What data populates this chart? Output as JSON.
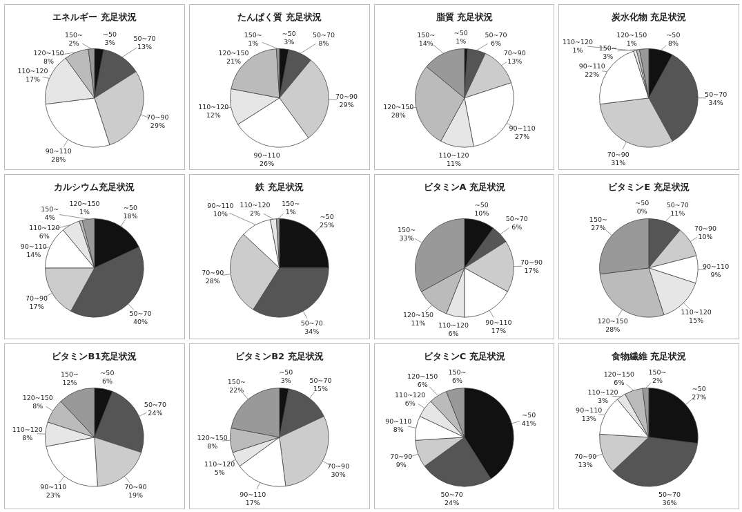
{
  "chart_data": [
    {
      "type": "pie",
      "title": "エネルギー 充足状況",
      "categories": [
        "~50",
        "50~70",
        "70~90",
        "90~110",
        "110~120",
        "120~150",
        "150~"
      ],
      "values": [
        3,
        13,
        29,
        28,
        17,
        8,
        2
      ],
      "colors": [
        "#111111",
        "#555555",
        "#cccccc",
        "#ffffff",
        "#e6e6e6",
        "#bbbbbb",
        "#999999"
      ],
      "value_labels": [
        "3%",
        "13%",
        "29%",
        "28%",
        "17%",
        "8%",
        "2%"
      ]
    },
    {
      "type": "pie",
      "title": "たんぱく質 充足状況",
      "categories": [
        "~50",
        "50~70",
        "70~90",
        "90~110",
        "110~120",
        "120~150",
        "150~"
      ],
      "values": [
        3,
        8,
        29,
        26,
        12,
        21,
        1
      ],
      "colors": [
        "#111111",
        "#555555",
        "#cccccc",
        "#ffffff",
        "#e6e6e6",
        "#bbbbbb",
        "#999999"
      ],
      "value_labels": [
        "3%",
        "8%",
        "29%",
        "26%",
        "12%",
        "21%",
        "1%"
      ]
    },
    {
      "type": "pie",
      "title": "脂質 充足状況",
      "categories": [
        "~50",
        "50~70",
        "70~90",
        "90~110",
        "110~120",
        "120~150",
        "150~"
      ],
      "values": [
        1,
        6,
        13,
        27,
        11,
        28,
        14
      ],
      "colors": [
        "#111111",
        "#555555",
        "#cccccc",
        "#ffffff",
        "#e6e6e6",
        "#bbbbbb",
        "#999999"
      ],
      "value_labels": [
        "1%",
        "6%",
        "13%",
        "27%",
        "11%",
        "28%",
        "14%"
      ]
    },
    {
      "type": "pie",
      "title": "炭水化物 充足状況",
      "categories": [
        "~50",
        "50~70",
        "70~90",
        "90~110",
        "110~120",
        "120~150",
        "150~"
      ],
      "values": [
        8,
        34,
        31,
        22,
        1,
        1,
        3
      ],
      "colors": [
        "#111111",
        "#555555",
        "#cccccc",
        "#ffffff",
        "#e6e6e6",
        "#bbbbbb",
        "#999999"
      ],
      "value_labels": [
        "8%",
        "34%",
        "31%",
        "22%",
        "1%",
        "1%",
        "3%"
      ]
    },
    {
      "type": "pie",
      "title": "カルシウム充足状況",
      "categories": [
        "~50",
        "50~70",
        "70~90",
        "90~110",
        "110~120",
        "120~150",
        "150~"
      ],
      "values": [
        18,
        40,
        17,
        14,
        6,
        1,
        4
      ],
      "colors": [
        "#111111",
        "#555555",
        "#cccccc",
        "#ffffff",
        "#e6e6e6",
        "#bbbbbb",
        "#999999"
      ],
      "value_labels": [
        "18%",
        "40%",
        "17%",
        "14%",
        "6%",
        "1%",
        "4%"
      ]
    },
    {
      "type": "pie",
      "title": "鉄 充足状況",
      "categories": [
        "~50",
        "50~70",
        "70~90",
        "90~110",
        "110~120",
        "150~"
      ],
      "values": [
        25,
        34,
        28,
        10,
        2,
        1
      ],
      "colors": [
        "#111111",
        "#555555",
        "#cccccc",
        "#ffffff",
        "#e6e6e6",
        "#999999"
      ],
      "value_labels": [
        "25%",
        "34%",
        "28%",
        "10%",
        "2%",
        "1%"
      ]
    },
    {
      "type": "pie",
      "title": "ビタミンA 充足状況",
      "categories": [
        "~50",
        "50~70",
        "70~90",
        "90~110",
        "110~120",
        "120~150",
        "150~"
      ],
      "values": [
        10,
        6,
        17,
        17,
        6,
        11,
        33
      ],
      "colors": [
        "#111111",
        "#555555",
        "#cccccc",
        "#ffffff",
        "#e6e6e6",
        "#bbbbbb",
        "#999999"
      ],
      "value_labels": [
        "10%",
        "6%",
        "17%",
        "17%",
        "6%",
        "11%",
        "33%"
      ]
    },
    {
      "type": "pie",
      "title": "ビタミンE 充足状況",
      "categories": [
        "~50",
        "50~70",
        "70~90",
        "90~110",
        "110~120",
        "120~150",
        "150~"
      ],
      "values": [
        0,
        11,
        10,
        9,
        15,
        28,
        27
      ],
      "colors": [
        "#111111",
        "#555555",
        "#cccccc",
        "#ffffff",
        "#e6e6e6",
        "#bbbbbb",
        "#999999"
      ],
      "value_labels": [
        "0%",
        "11%",
        "10%",
        "9%",
        "15%",
        "28%",
        "27%"
      ]
    },
    {
      "type": "pie",
      "title": "ビタミンB1充足状況",
      "categories": [
        "~50",
        "50~70",
        "70~90",
        "90~110",
        "110~120",
        "120~150",
        "150~"
      ],
      "values": [
        6,
        24,
        19,
        23,
        8,
        8,
        12
      ],
      "colors": [
        "#111111",
        "#555555",
        "#cccccc",
        "#ffffff",
        "#e6e6e6",
        "#bbbbbb",
        "#999999"
      ],
      "value_labels": [
        "6%",
        "24%",
        "19%",
        "23%",
        "8%",
        "8%",
        "12%"
      ]
    },
    {
      "type": "pie",
      "title": "ビタミンB2 充足状況",
      "categories": [
        "~50",
        "50~70",
        "70~90",
        "90~110",
        "110~120",
        "120~150",
        "150~"
      ],
      "values": [
        3,
        15,
        30,
        17,
        5,
        8,
        22
      ],
      "colors": [
        "#111111",
        "#555555",
        "#cccccc",
        "#ffffff",
        "#e6e6e6",
        "#bbbbbb",
        "#999999"
      ],
      "value_labels": [
        "3%",
        "15%",
        "30%",
        "17%",
        "5%",
        "8%",
        "22%"
      ]
    },
    {
      "type": "pie",
      "title": "ビタミンC 充足状況",
      "categories": [
        "~50",
        "50~70",
        "70~90",
        "90~110",
        "110~120",
        "120~150",
        "150~"
      ],
      "values": [
        41,
        24,
        9,
        8,
        6,
        6,
        6
      ],
      "colors": [
        "#111111",
        "#555555",
        "#cccccc",
        "#ffffff",
        "#e6e6e6",
        "#bbbbbb",
        "#999999"
      ],
      "value_labels": [
        "41%",
        "24%",
        "9%",
        "8%",
        "6%",
        "6%",
        "6%"
      ]
    },
    {
      "type": "pie",
      "title": "食物繊維 充足状況",
      "categories": [
        "~50",
        "50~70",
        "70~90",
        "90~110",
        "110~120",
        "120~150",
        "150~"
      ],
      "values": [
        27,
        36,
        13,
        13,
        3,
        6,
        2
      ],
      "colors": [
        "#111111",
        "#555555",
        "#cccccc",
        "#ffffff",
        "#e6e6e6",
        "#bbbbbb",
        "#999999"
      ],
      "value_labels": [
        "27%",
        "36%",
        "13%",
        "13%",
        "3%",
        "6%",
        "2%"
      ]
    }
  ]
}
